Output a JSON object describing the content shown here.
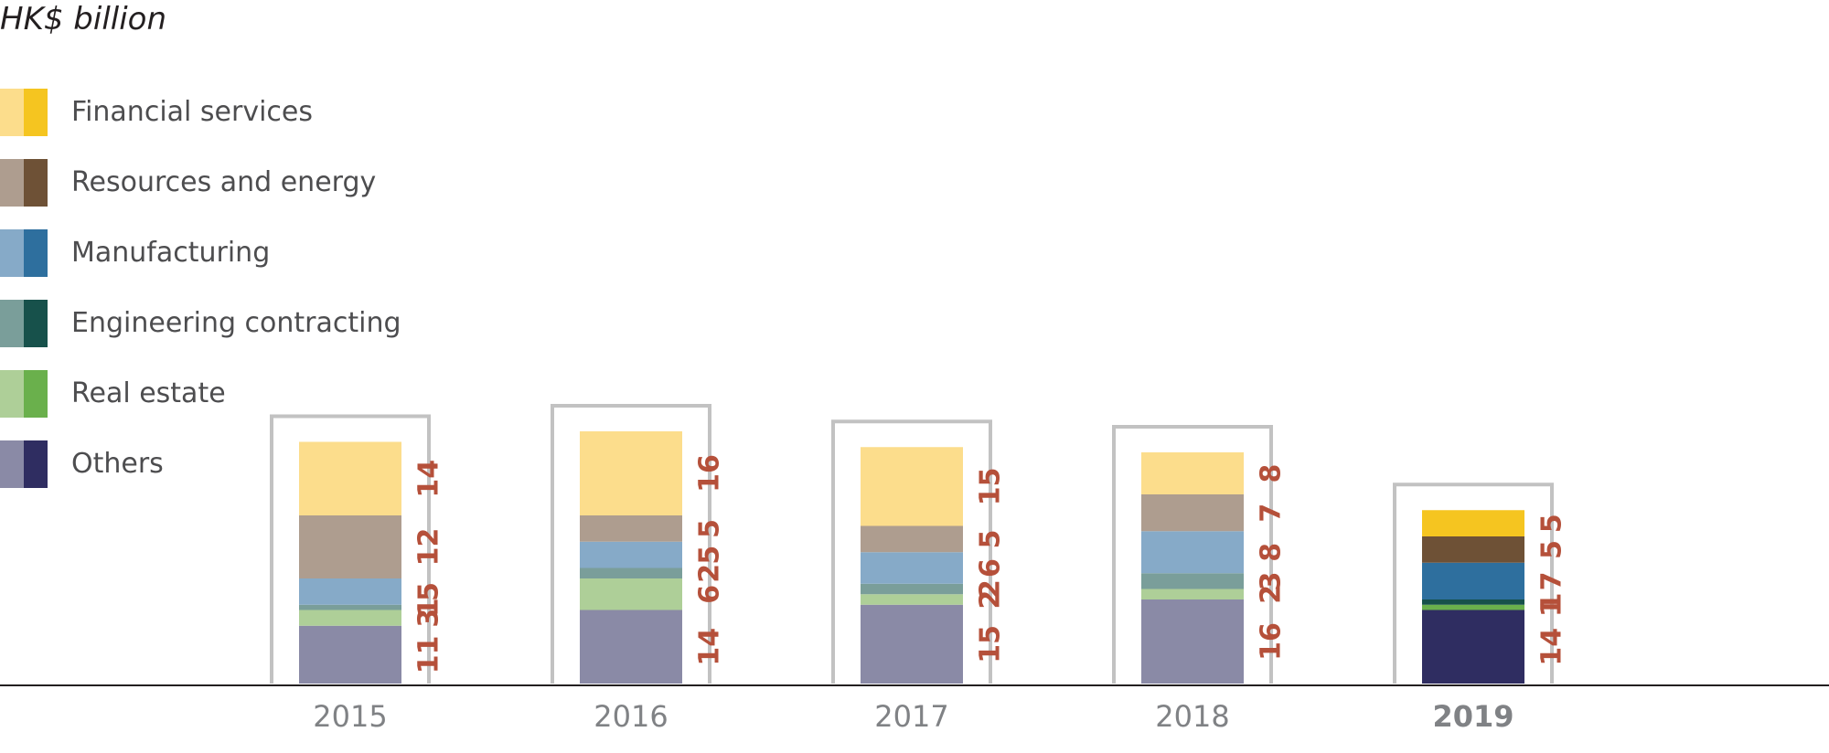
{
  "chart_data": {
    "type": "bar",
    "stacked": true,
    "unit": "HK$ billion",
    "categories": [
      "2015",
      "2016",
      "2017",
      "2018",
      "2019"
    ],
    "highlight_category": "2019",
    "grid": false,
    "legend_position": "top-left",
    "series": [
      {
        "name": "Others",
        "light": "#8a8aa6",
        "dark": "#2f2d61",
        "values": [
          11,
          14,
          15,
          16,
          14
        ]
      },
      {
        "name": "Real estate",
        "light": "#aecf98",
        "dark": "#6ab04c",
        "values": [
          3,
          6,
          2,
          2,
          1
        ]
      },
      {
        "name": "Engineering contracting",
        "light": "#7a9e9a",
        "dark": "#17514b",
        "values": [
          1,
          2,
          2,
          3,
          1
        ]
      },
      {
        "name": "Manufacturing",
        "light": "#86aac8",
        "dark": "#2e6f9e",
        "values": [
          5,
          5,
          6,
          8,
          7
        ]
      },
      {
        "name": "Resources and energy",
        "light": "#ae9d8f",
        "dark": "#6e5136",
        "values": [
          12,
          5,
          5,
          7,
          5
        ]
      },
      {
        "name": "Financial services",
        "light": "#fcdd8c",
        "dark": "#f5c520",
        "values": [
          14,
          16,
          15,
          8,
          5
        ]
      }
    ],
    "legend_order": [
      "Financial services",
      "Resources and energy",
      "Manufacturing",
      "Engineering contracting",
      "Real estate",
      "Others"
    ],
    "colors": {
      "frame": "#c2c2c2",
      "axis": "#231f20",
      "value_text": "#b5503a",
      "year_text": "#808285"
    }
  }
}
